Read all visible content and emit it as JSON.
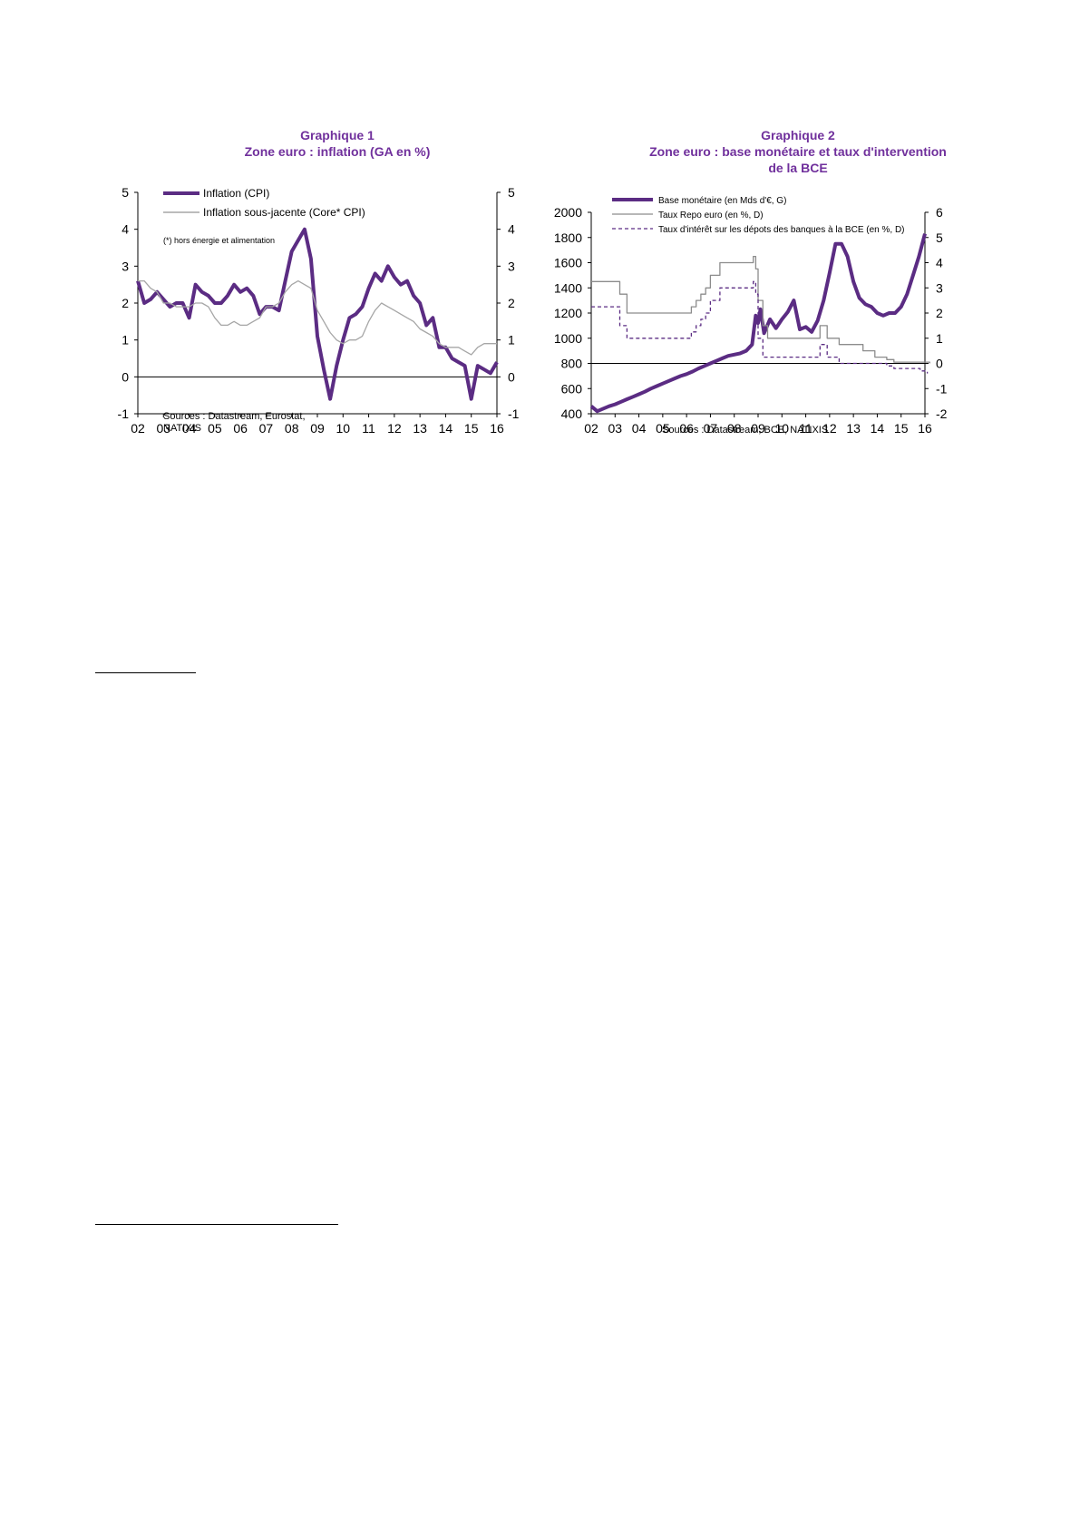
{
  "chart_data": [
    {
      "type": "line",
      "title": "Graphique 1",
      "subtitle": "Zone euro :  inflation (GA en %)",
      "categories": [
        "02",
        "03",
        "04",
        "05",
        "06",
        "07",
        "08",
        "09",
        "10",
        "11",
        "12",
        "13",
        "14",
        "15",
        "16"
      ],
      "ylim": [
        -1,
        5
      ],
      "yticks": [
        -1,
        0,
        1,
        2,
        3,
        4,
        5
      ],
      "y2ticks": [
        -1,
        0,
        1,
        2,
        3,
        4,
        5
      ],
      "grid": false,
      "legend": "top-left",
      "note": "(*) hors énergie et alimentation",
      "source_lines": [
        "Sources : Datastream, Eurostat,",
        "NATIXIS"
      ],
      "series": [
        {
          "name": "Inflation (CPI)",
          "color": "#5b2c83",
          "style": "thick",
          "x": [
            2002.0,
            2002.25,
            2002.5,
            2002.75,
            2003.0,
            2003.25,
            2003.5,
            2003.75,
            2004.0,
            2004.25,
            2004.5,
            2004.75,
            2005.0,
            2005.25,
            2005.5,
            2005.75,
            2006.0,
            2006.25,
            2006.5,
            2006.75,
            2007.0,
            2007.25,
            2007.5,
            2007.75,
            2008.0,
            2008.25,
            2008.5,
            2008.75,
            2009.0,
            2009.25,
            2009.5,
            2009.75,
            2010.0,
            2010.25,
            2010.5,
            2010.75,
            2011.0,
            2011.25,
            2011.5,
            2011.75,
            2012.0,
            2012.25,
            2012.5,
            2012.75,
            2013.0,
            2013.25,
            2013.5,
            2013.75,
            2014.0,
            2014.25,
            2014.5,
            2014.75,
            2015.0,
            2015.25,
            2015.5,
            2015.75,
            2016.0
          ],
          "values": [
            2.6,
            2.0,
            2.1,
            2.3,
            2.1,
            1.9,
            2.0,
            2.0,
            1.6,
            2.5,
            2.3,
            2.2,
            2.0,
            2.0,
            2.2,
            2.5,
            2.3,
            2.4,
            2.2,
            1.7,
            1.9,
            1.9,
            1.8,
            2.6,
            3.4,
            3.7,
            4.0,
            3.2,
            1.1,
            0.2,
            -0.6,
            0.3,
            1.0,
            1.6,
            1.7,
            1.9,
            2.4,
            2.8,
            2.6,
            3.0,
            2.7,
            2.5,
            2.6,
            2.2,
            2.0,
            1.4,
            1.6,
            0.8,
            0.8,
            0.5,
            0.4,
            0.3,
            -0.6,
            0.3,
            0.2,
            0.1,
            0.4
          ]
        },
        {
          "name": "Inflation sous-jacente (Core* CPI)",
          "color": "#a6a6a6",
          "style": "thin",
          "x": [
            2002.0,
            2002.25,
            2002.5,
            2002.75,
            2003.0,
            2003.25,
            2003.5,
            2003.75,
            2004.0,
            2004.25,
            2004.5,
            2004.75,
            2005.0,
            2005.25,
            2005.5,
            2005.75,
            2006.0,
            2006.25,
            2006.5,
            2006.75,
            2007.0,
            2007.25,
            2007.5,
            2007.75,
            2008.0,
            2008.25,
            2008.5,
            2008.75,
            2009.0,
            2009.25,
            2009.5,
            2009.75,
            2010.0,
            2010.25,
            2010.5,
            2010.75,
            2011.0,
            2011.25,
            2011.5,
            2011.75,
            2012.0,
            2012.25,
            2012.5,
            2012.75,
            2013.0,
            2013.25,
            2013.5,
            2013.75,
            2014.0,
            2014.25,
            2014.5,
            2014.75,
            2015.0,
            2015.25,
            2015.5,
            2015.75,
            2016.0
          ],
          "values": [
            2.6,
            2.6,
            2.4,
            2.3,
            2.0,
            2.0,
            1.9,
            1.9,
            1.9,
            2.0,
            2.0,
            1.9,
            1.6,
            1.4,
            1.4,
            1.5,
            1.4,
            1.4,
            1.5,
            1.6,
            1.9,
            1.9,
            2.0,
            2.3,
            2.5,
            2.6,
            2.5,
            2.4,
            1.8,
            1.5,
            1.2,
            1.0,
            0.9,
            1.0,
            1.0,
            1.1,
            1.5,
            1.8,
            2.0,
            1.9,
            1.8,
            1.7,
            1.6,
            1.5,
            1.3,
            1.2,
            1.1,
            0.9,
            0.8,
            0.8,
            0.8,
            0.7,
            0.6,
            0.8,
            0.9,
            0.9,
            0.9
          ]
        }
      ]
    },
    {
      "type": "line",
      "title": "Graphique 2",
      "subtitle": "Zone euro : base monétaire et taux d'intervention",
      "subtitle2": "de la BCE",
      "categories": [
        "02",
        "03",
        "04",
        "05",
        "06",
        "07",
        "08",
        "09",
        "10",
        "11",
        "12",
        "13",
        "14",
        "15",
        "16"
      ],
      "ylim": [
        400,
        2000
      ],
      "yticks": [
        400,
        600,
        800,
        1000,
        1200,
        1400,
        1600,
        1800,
        2000
      ],
      "y2lim": [
        -2,
        6
      ],
      "y2ticks": [
        -2,
        -1,
        0,
        1,
        2,
        3,
        4,
        5,
        6
      ],
      "grid": false,
      "legend": "top",
      "source_lines": [
        "Sources : Datastream, BCE, NATIXIS"
      ],
      "series": [
        {
          "name": "Base monétaire (en Mds d'€, G)",
          "axis": "left",
          "color": "#5b2c83",
          "style": "thick",
          "x": [
            2002.0,
            2002.25,
            2002.5,
            2002.75,
            2003.0,
            2003.25,
            2003.5,
            2003.75,
            2004.0,
            2004.25,
            2004.5,
            2004.75,
            2005.0,
            2005.25,
            2005.5,
            2005.75,
            2006.0,
            2006.25,
            2006.5,
            2006.75,
            2007.0,
            2007.25,
            2007.5,
            2007.75,
            2008.0,
            2008.25,
            2008.5,
            2008.75,
            2008.9,
            2009.0,
            2009.1,
            2009.25,
            2009.5,
            2009.75,
            2010.0,
            2010.25,
            2010.5,
            2010.75,
            2011.0,
            2011.25,
            2011.5,
            2011.75,
            2012.0,
            2012.25,
            2012.5,
            2012.75,
            2013.0,
            2013.25,
            2013.5,
            2013.75,
            2014.0,
            2014.25,
            2014.5,
            2014.75,
            2015.0,
            2015.25,
            2015.5,
            2015.75,
            2016.0
          ],
          "values": [
            460,
            420,
            440,
            460,
            475,
            495,
            515,
            535,
            555,
            575,
            600,
            620,
            640,
            660,
            680,
            700,
            715,
            735,
            760,
            780,
            800,
            820,
            840,
            860,
            870,
            880,
            900,
            950,
            1180,
            1120,
            1230,
            1040,
            1150,
            1080,
            1150,
            1210,
            1300,
            1070,
            1090,
            1050,
            1140,
            1300,
            1520,
            1750,
            1750,
            1650,
            1450,
            1320,
            1270,
            1250,
            1200,
            1180,
            1200,
            1200,
            1250,
            1350,
            1500,
            1650,
            1830
          ]
        },
        {
          "name": "Taux Repo euro (en %, D)",
          "axis": "right",
          "color": "#8c8c8c",
          "style": "thin",
          "x": [
            2002.0,
            2002.9,
            2003.2,
            2003.5,
            2005.9,
            2006.2,
            2006.4,
            2006.6,
            2006.8,
            2007.0,
            2007.4,
            2008.5,
            2008.8,
            2008.9,
            2009.0,
            2009.2,
            2009.4,
            2011.3,
            2011.6,
            2011.9,
            2012.4,
            2013.4,
            2013.9,
            2014.4,
            2014.7,
            2015.0,
            2016.2
          ],
          "values": [
            3.25,
            3.25,
            2.75,
            2.0,
            2.0,
            2.25,
            2.5,
            2.75,
            3.0,
            3.5,
            4.0,
            4.0,
            4.25,
            3.75,
            2.5,
            1.5,
            1.0,
            1.0,
            1.5,
            1.0,
            0.75,
            0.5,
            0.25,
            0.15,
            0.05,
            0.05,
            0.0
          ]
        },
        {
          "name": "Taux d'intérêt sur les dépots des banques à la BCE (en %, D)",
          "axis": "right",
          "color": "#5b2c83",
          "style": "dashed",
          "x": [
            2002.0,
            2002.9,
            2003.2,
            2003.5,
            2005.9,
            2006.2,
            2006.4,
            2006.6,
            2006.8,
            2007.0,
            2007.4,
            2008.5,
            2008.8,
            2008.9,
            2009.0,
            2009.2,
            2011.3,
            2011.6,
            2011.9,
            2012.4,
            2014.4,
            2014.7,
            2015.8,
            2016.1
          ],
          "values": [
            2.25,
            2.25,
            1.5,
            1.0,
            1.0,
            1.25,
            1.5,
            1.75,
            2.0,
            2.5,
            3.0,
            3.0,
            3.25,
            2.75,
            1.0,
            0.25,
            0.25,
            0.75,
            0.25,
            0.0,
            -0.1,
            -0.2,
            -0.3,
            -0.4
          ]
        }
      ]
    }
  ]
}
